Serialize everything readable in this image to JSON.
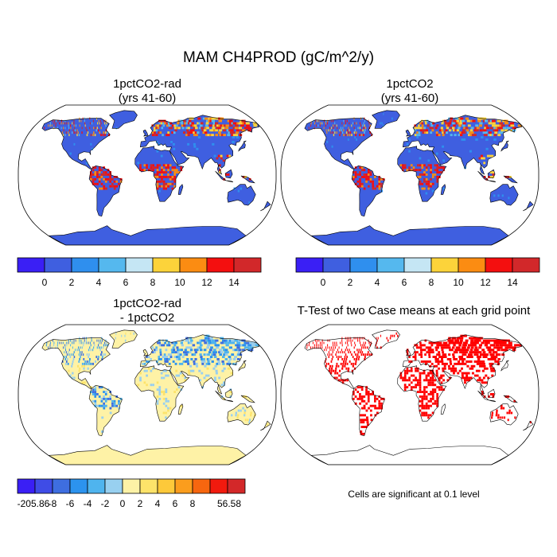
{
  "figure": {
    "title": "MAM CH4PROD (gC/m^2/y)"
  },
  "panels": [
    {
      "id": "p1",
      "title_line1": "1pctCO2-rad",
      "title_line2": "(yrs 41-60)",
      "kind": "field",
      "palette": "abs"
    },
    {
      "id": "p2",
      "title_line1": "1pctCO2",
      "title_line2": "(yrs 41-60)",
      "kind": "field",
      "palette": "abs"
    },
    {
      "id": "p3",
      "title_line1": "1pctCO2-rad",
      "title_line2": "- 1pctCO2",
      "kind": "difference",
      "palette": "diff"
    },
    {
      "id": "p4",
      "title_line1": "T-Test of two Case means at each grid point",
      "title_line2": "",
      "kind": "significance",
      "palette": "sig"
    }
  ],
  "colorbars": {
    "abs": {
      "colors": [
        "#3a1ff5",
        "#3f5fe0",
        "#2f8fee",
        "#55b8ee",
        "#c5e6f4",
        "#fcd33a",
        "#fb8c12",
        "#f40f0f",
        "#d2282a"
      ],
      "tick_labels": [
        "0",
        "2",
        "4",
        "6",
        "8",
        "10",
        "12",
        "14"
      ]
    },
    "diff": {
      "colors": [
        "#3a1ff5",
        "#3f4ce6",
        "#3e6ee0",
        "#2c93ee",
        "#4fb4ee",
        "#98d0f0",
        "#fdf2a6",
        "#fde36a",
        "#fdc93a",
        "#fb9d1d",
        "#f7660f",
        "#f21a0e",
        "#d32829"
      ],
      "tick_labels": [
        "-205.86",
        "-8",
        "-6",
        "-4",
        "-2",
        "0",
        "2",
        "4",
        "6",
        "8",
        "56.58"
      ]
    },
    "sig": {
      "colors": [
        "#ff0000"
      ]
    }
  },
  "land_colors": {
    "abs_base": "#3f5fe0",
    "diff_base": "#fef2a6",
    "diff_blue": "#98cdee",
    "sig_mark": "#ff0000"
  },
  "significance_note": "Cells are significant at 0.1 level"
}
